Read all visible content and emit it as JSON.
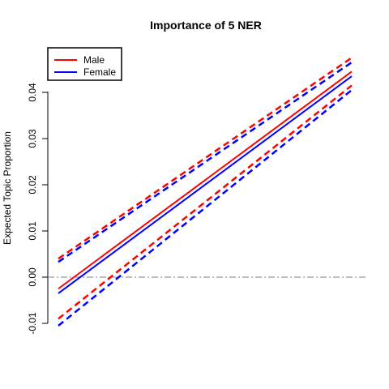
{
  "chart_data": {
    "type": "line",
    "title": "Importance of 5 NER",
    "xlabel": "",
    "ylabel": "Expected Topic Proportion",
    "x": [
      0,
      1
    ],
    "xlim": [
      0,
      1
    ],
    "ylim": [
      -0.011,
      0.047
    ],
    "yticks": [
      -0.01,
      0.0,
      0.01,
      0.02,
      0.03,
      0.04
    ],
    "ytick_labels": [
      "-0.01",
      "0.00",
      "0.01",
      "0.02",
      "0.03",
      "0.04"
    ],
    "reference_line": {
      "y": 0.0,
      "style": "dash-dot",
      "color": "#808080"
    },
    "legend": {
      "placement": "top-left",
      "entries": [
        "Male",
        "Female"
      ]
    },
    "series": [
      {
        "name": "Male",
        "color": "#ff0000",
        "estimate": [
          -0.0025,
          0.0445
        ],
        "lower": [
          -0.009,
          0.0415
        ],
        "upper": [
          0.004,
          0.0475
        ]
      },
      {
        "name": "Female",
        "color": "#0000ff",
        "estimate": [
          -0.0035,
          0.0435
        ],
        "lower": [
          -0.0105,
          0.0405
        ],
        "upper": [
          0.0033,
          0.0465
        ]
      }
    ]
  }
}
